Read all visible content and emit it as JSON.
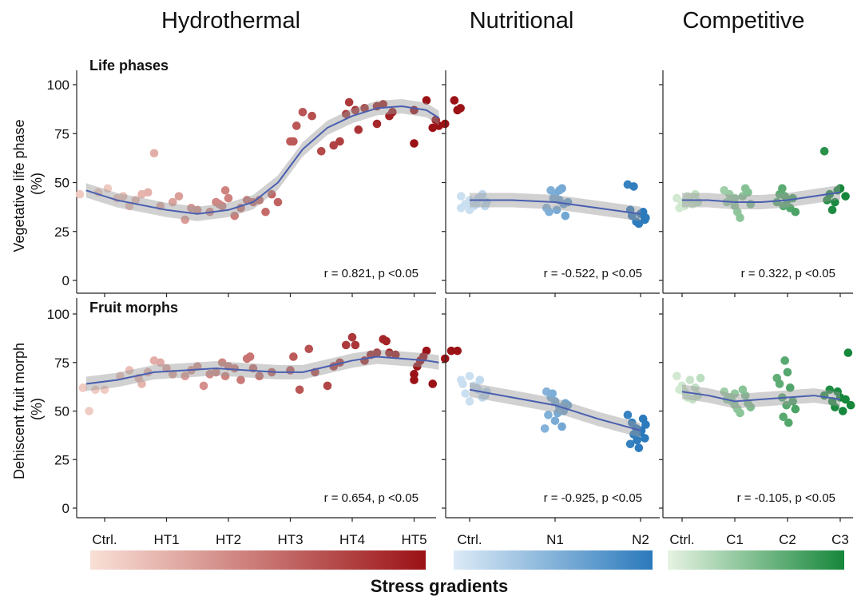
{
  "header": {
    "groups": [
      "Hydrothermal",
      "Nutritional",
      "Competitive"
    ],
    "footer": "Stress gradients"
  },
  "rows": [
    {
      "title": "Life phases",
      "ylabel_line1": "Vegetative life phase",
      "ylabel_line2": "(%)"
    },
    {
      "title": "Fruit morphs",
      "ylabel_line1": "Dehiscent fruit morph",
      "ylabel_line2": "(%)"
    }
  ],
  "gradient_colors": {
    "hydrothermal": [
      "#f9e0d6",
      "#9b1216"
    ],
    "nutritional": [
      "#dceaf6",
      "#2b7abc"
    ],
    "competitive": [
      "#e6f3e2",
      "#16873b"
    ]
  },
  "chart_data": [
    {
      "type": "scatter",
      "row": 0,
      "group": "Hydrothermal",
      "categories": [
        "Ctrl.",
        "HT1",
        "HT2",
        "HT3",
        "HT4",
        "HT5"
      ],
      "ylim": [
        0,
        105
      ],
      "yticks": [
        0,
        25,
        50,
        75,
        100
      ],
      "stat": "r = 0.821, p <0.05",
      "points": [
        [
          0.05,
          47
        ],
        [
          -0.1,
          45
        ],
        [
          0.3,
          43
        ],
        [
          -0.4,
          44
        ],
        [
          0.4,
          38
        ],
        [
          0.2,
          42
        ],
        [
          0.6,
          44
        ],
        [
          0.7,
          45
        ],
        [
          0.8,
          65
        ],
        [
          0.5,
          41
        ],
        [
          0.9,
          38
        ],
        [
          1.1,
          40
        ],
        [
          1.2,
          43
        ],
        [
          1.3,
          31
        ],
        [
          1.4,
          37
        ],
        [
          1.5,
          36
        ],
        [
          1.7,
          35
        ],
        [
          1.8,
          40
        ],
        [
          1.9,
          38
        ],
        [
          2.0,
          42
        ],
        [
          1.95,
          46
        ],
        [
          2.1,
          33
        ],
        [
          1.85,
          39
        ],
        [
          2.3,
          41
        ],
        [
          2.4,
          40
        ],
        [
          2.5,
          41
        ],
        [
          2.7,
          44
        ],
        [
          2.8,
          40
        ],
        [
          2.2,
          37
        ],
        [
          2.6,
          35
        ],
        [
          3.0,
          71
        ],
        [
          3.05,
          71
        ],
        [
          3.1,
          79
        ],
        [
          3.2,
          86
        ],
        [
          3.35,
          84
        ],
        [
          3.5,
          66
        ],
        [
          3.7,
          69
        ],
        [
          3.8,
          71
        ],
        [
          3.9,
          85
        ],
        [
          3.95,
          91
        ],
        [
          4.05,
          87
        ],
        [
          4.1,
          77
        ],
        [
          4.2,
          88
        ],
        [
          4.4,
          89
        ],
        [
          4.5,
          90
        ],
        [
          4.6,
          84
        ],
        [
          4.65,
          86
        ],
        [
          4.4,
          80
        ],
        [
          5.0,
          70
        ],
        [
          5.0,
          87
        ],
        [
          5.2,
          92
        ],
        [
          5.3,
          78
        ],
        [
          5.35,
          82
        ],
        [
          5.4,
          79
        ],
        [
          5.5,
          80
        ],
        [
          5.65,
          92
        ],
        [
          5.7,
          87
        ],
        [
          5.75,
          88
        ]
      ],
      "trend": [
        [
          -0.3,
          46
        ],
        [
          0.2,
          41
        ],
        [
          1.0,
          36
        ],
        [
          1.5,
          34
        ],
        [
          2.0,
          36
        ],
        [
          2.4,
          40
        ],
        [
          2.8,
          50
        ],
        [
          3.2,
          67
        ],
        [
          3.6,
          78
        ],
        [
          4.0,
          84
        ],
        [
          4.4,
          88
        ],
        [
          4.8,
          89
        ],
        [
          5.2,
          87
        ],
        [
          5.4,
          83
        ]
      ]
    },
    {
      "type": "scatter",
      "row": 0,
      "group": "Nutritional",
      "categories": [
        "Ctrl.",
        "N1",
        "N2"
      ],
      "ylim": [
        0,
        105
      ],
      "yticks": [
        0,
        25,
        50,
        75,
        100
      ],
      "stat": "r = -0.522, p <0.05",
      "points": [
        [
          -0.1,
          43
        ],
        [
          0.0,
          41
        ],
        [
          0.05,
          38
        ],
        [
          0.1,
          42
        ],
        [
          -0.05,
          39
        ],
        [
          0.15,
          44
        ],
        [
          0.2,
          40
        ],
        [
          0.0,
          36
        ],
        [
          -0.1,
          37
        ],
        [
          0.08,
          39
        ],
        [
          0.12,
          42
        ],
        [
          0.18,
          38
        ],
        [
          0.95,
          46
        ],
        [
          1.0,
          44
        ],
        [
          1.05,
          41
        ],
        [
          1.1,
          39
        ],
        [
          0.9,
          37
        ],
        [
          1.02,
          36
        ],
        [
          0.98,
          42
        ],
        [
          1.08,
          47
        ],
        [
          1.12,
          33
        ],
        [
          0.93,
          35
        ],
        [
          1.15,
          40
        ],
        [
          1.05,
          46
        ],
        [
          1.85,
          49
        ],
        [
          1.9,
          33
        ],
        [
          1.95,
          30
        ],
        [
          2.0,
          34
        ],
        [
          2.05,
          31
        ],
        [
          1.88,
          36
        ],
        [
          1.98,
          29
        ],
        [
          2.03,
          35
        ],
        [
          1.92,
          48
        ],
        [
          2.06,
          32
        ]
      ],
      "trend": [
        [
          0.0,
          41
        ],
        [
          0.5,
          41
        ],
        [
          1.0,
          40
        ],
        [
          1.5,
          37
        ],
        [
          2.0,
          34
        ]
      ]
    },
    {
      "type": "scatter",
      "row": 0,
      "group": "Competitive",
      "categories": [
        "Ctrl.",
        "C1",
        "C2",
        "C3"
      ],
      "ylim": [
        0,
        105
      ],
      "yticks": [
        0,
        25,
        50,
        75,
        100
      ],
      "stat": "r = 0.322, p <0.05",
      "points": [
        [
          -0.1,
          42
        ],
        [
          0.0,
          40
        ],
        [
          0.05,
          38
        ],
        [
          0.1,
          43
        ],
        [
          0.15,
          41
        ],
        [
          0.2,
          39
        ],
        [
          -0.05,
          37
        ],
        [
          0.25,
          44
        ],
        [
          0.3,
          40
        ],
        [
          0.8,
          46
        ],
        [
          0.9,
          44
        ],
        [
          0.95,
          41
        ],
        [
          1.0,
          38
        ],
        [
          1.05,
          35
        ],
        [
          1.1,
          32
        ],
        [
          1.15,
          43
        ],
        [
          1.2,
          47
        ],
        [
          1.25,
          45
        ],
        [
          0.85,
          40
        ],
        [
          1.0,
          42
        ],
        [
          1.3,
          39
        ],
        [
          1.8,
          40
        ],
        [
          1.85,
          44
        ],
        [
          1.9,
          47
        ],
        [
          1.95,
          43
        ],
        [
          2.0,
          41
        ],
        [
          2.05,
          37
        ],
        [
          2.1,
          42
        ],
        [
          2.15,
          35
        ],
        [
          1.92,
          38
        ],
        [
          2.7,
          66
        ],
        [
          2.75,
          41
        ],
        [
          2.85,
          36
        ],
        [
          2.9,
          40
        ],
        [
          2.95,
          46
        ],
        [
          3.0,
          47
        ],
        [
          3.1,
          43
        ],
        [
          2.8,
          44
        ]
      ],
      "trend": [
        [
          0.0,
          41
        ],
        [
          0.5,
          41
        ],
        [
          1.0,
          40
        ],
        [
          1.5,
          40
        ],
        [
          2.0,
          41
        ],
        [
          2.5,
          43
        ],
        [
          3.0,
          45
        ]
      ]
    },
    {
      "type": "scatter",
      "row": 1,
      "group": "Hydrothermal",
      "categories": [
        "Ctrl.",
        "HT1",
        "HT2",
        "HT3",
        "HT4",
        "HT5"
      ],
      "ylim": [
        0,
        105
      ],
      "yticks": [
        0,
        25,
        50,
        75,
        100
      ],
      "stat": "r = 0.654, p <0.05",
      "points": [
        [
          -0.35,
          62
        ],
        [
          -0.25,
          50
        ],
        [
          -0.15,
          61
        ],
        [
          0.0,
          61
        ],
        [
          0.25,
          68
        ],
        [
          0.4,
          71
        ],
        [
          0.55,
          67
        ],
        [
          0.6,
          64
        ],
        [
          0.7,
          70
        ],
        [
          0.8,
          76
        ],
        [
          0.9,
          75
        ],
        [
          1.0,
          72
        ],
        [
          1.1,
          69
        ],
        [
          1.3,
          68
        ],
        [
          1.4,
          71
        ],
        [
          1.5,
          73
        ],
        [
          1.6,
          63
        ],
        [
          1.7,
          69
        ],
        [
          1.8,
          70
        ],
        [
          1.9,
          75
        ],
        [
          1.95,
          68
        ],
        [
          2.0,
          73
        ],
        [
          2.2,
          66
        ],
        [
          2.3,
          77
        ],
        [
          2.35,
          78
        ],
        [
          2.4,
          72
        ],
        [
          2.5,
          68
        ],
        [
          2.1,
          72
        ],
        [
          2.7,
          70
        ],
        [
          3.0,
          71
        ],
        [
          3.05,
          78
        ],
        [
          3.15,
          61
        ],
        [
          3.3,
          82
        ],
        [
          3.4,
          70
        ],
        [
          3.6,
          63
        ],
        [
          3.7,
          73
        ],
        [
          3.8,
          75
        ],
        [
          3.9,
          84
        ],
        [
          4.0,
          88
        ],
        [
          4.05,
          84
        ],
        [
          4.2,
          76
        ],
        [
          4.3,
          79
        ],
        [
          4.4,
          80
        ],
        [
          4.5,
          87
        ],
        [
          4.55,
          86
        ],
        [
          4.6,
          80
        ],
        [
          4.7,
          79
        ],
        [
          5.0,
          66
        ],
        [
          5.0,
          69
        ],
        [
          5.05,
          73
        ],
        [
          5.1,
          76
        ],
        [
          5.15,
          78
        ],
        [
          5.2,
          81
        ],
        [
          5.3,
          64
        ],
        [
          5.5,
          77
        ],
        [
          5.6,
          81
        ],
        [
          5.7,
          81
        ]
      ],
      "trend": [
        [
          -0.3,
          64
        ],
        [
          0.2,
          66
        ],
        [
          0.8,
          70
        ],
        [
          1.3,
          71
        ],
        [
          1.8,
          72
        ],
        [
          2.3,
          71
        ],
        [
          2.8,
          70
        ],
        [
          3.2,
          70
        ],
        [
          3.6,
          73
        ],
        [
          4.0,
          76
        ],
        [
          4.4,
          78
        ],
        [
          4.8,
          77
        ],
        [
          5.2,
          76
        ],
        [
          5.4,
          75
        ]
      ]
    },
    {
      "type": "scatter",
      "row": 1,
      "group": "Nutritional",
      "categories": [
        "Ctrl.",
        "N1",
        "N2"
      ],
      "ylim": [
        0,
        105
      ],
      "yticks": [
        0,
        25,
        50,
        75,
        100
      ],
      "stat": "r = -0.925, p <0.05",
      "points": [
        [
          -0.1,
          66
        ],
        [
          0.0,
          68
        ],
        [
          0.05,
          63
        ],
        [
          0.1,
          61
        ],
        [
          -0.05,
          59
        ],
        [
          0.15,
          57
        ],
        [
          0.0,
          55
        ],
        [
          0.08,
          62
        ],
        [
          0.12,
          66
        ],
        [
          0.2,
          60
        ],
        [
          -0.08,
          64
        ],
        [
          0.18,
          58
        ],
        [
          0.9,
          60
        ],
        [
          0.95,
          57
        ],
        [
          1.0,
          55
        ],
        [
          1.05,
          52
        ],
        [
          1.1,
          50
        ],
        [
          0.92,
          48
        ],
        [
          1.0,
          45
        ],
        [
          1.08,
          42
        ],
        [
          1.12,
          54
        ],
        [
          0.97,
          59
        ],
        [
          1.03,
          49
        ],
        [
          1.15,
          53
        ],
        [
          0.88,
          41
        ],
        [
          1.85,
          48
        ],
        [
          1.9,
          44
        ],
        [
          1.95,
          41
        ],
        [
          2.0,
          39
        ],
        [
          2.05,
          36
        ],
        [
          1.88,
          33
        ],
        [
          1.98,
          31
        ],
        [
          2.03,
          46
        ],
        [
          1.92,
          38
        ],
        [
          2.06,
          43
        ],
        [
          1.96,
          35
        ],
        [
          2.01,
          40
        ]
      ],
      "trend": [
        [
          0.0,
          61
        ],
        [
          0.5,
          57
        ],
        [
          1.0,
          53
        ],
        [
          1.5,
          46
        ],
        [
          2.0,
          40
        ]
      ]
    },
    {
      "type": "scatter",
      "row": 1,
      "group": "Competitive",
      "categories": [
        "Ctrl.",
        "C1",
        "C2",
        "C3"
      ],
      "ylim": [
        0,
        105
      ],
      "yticks": [
        0,
        25,
        50,
        75,
        100
      ],
      "stat": "r = -0.105, p <0.05",
      "points": [
        [
          -0.1,
          68
        ],
        [
          0.0,
          63
        ],
        [
          0.05,
          60
        ],
        [
          0.1,
          57
        ],
        [
          0.15,
          66
        ],
        [
          0.2,
          56
        ],
        [
          -0.05,
          61
        ],
        [
          0.25,
          62
        ],
        [
          0.3,
          58
        ],
        [
          0.35,
          67
        ],
        [
          0.8,
          60
        ],
        [
          0.9,
          57
        ],
        [
          0.95,
          55
        ],
        [
          1.0,
          53
        ],
        [
          1.05,
          51
        ],
        [
          1.1,
          49
        ],
        [
          1.15,
          61
        ],
        [
          1.2,
          58
        ],
        [
          0.85,
          56
        ],
        [
          1.0,
          59
        ],
        [
          1.25,
          54
        ],
        [
          1.3,
          52
        ],
        [
          1.8,
          67
        ],
        [
          1.85,
          64
        ],
        [
          1.9,
          57
        ],
        [
          1.95,
          76
        ],
        [
          2.0,
          70
        ],
        [
          2.05,
          62
        ],
        [
          2.1,
          55
        ],
        [
          2.15,
          51
        ],
        [
          1.92,
          47
        ],
        [
          2.02,
          44
        ],
        [
          1.98,
          53
        ],
        [
          2.7,
          58
        ],
        [
          2.8,
          61
        ],
        [
          2.85,
          55
        ],
        [
          2.9,
          52
        ],
        [
          2.95,
          60
        ],
        [
          3.0,
          57
        ],
        [
          3.05,
          50
        ],
        [
          3.1,
          56
        ],
        [
          3.15,
          80
        ],
        [
          3.2,
          53
        ]
      ],
      "trend": [
        [
          0.0,
          60
        ],
        [
          0.5,
          58
        ],
        [
          1.0,
          55
        ],
        [
          1.5,
          56
        ],
        [
          2.0,
          57
        ],
        [
          2.5,
          58
        ],
        [
          3.0,
          56
        ]
      ]
    }
  ]
}
